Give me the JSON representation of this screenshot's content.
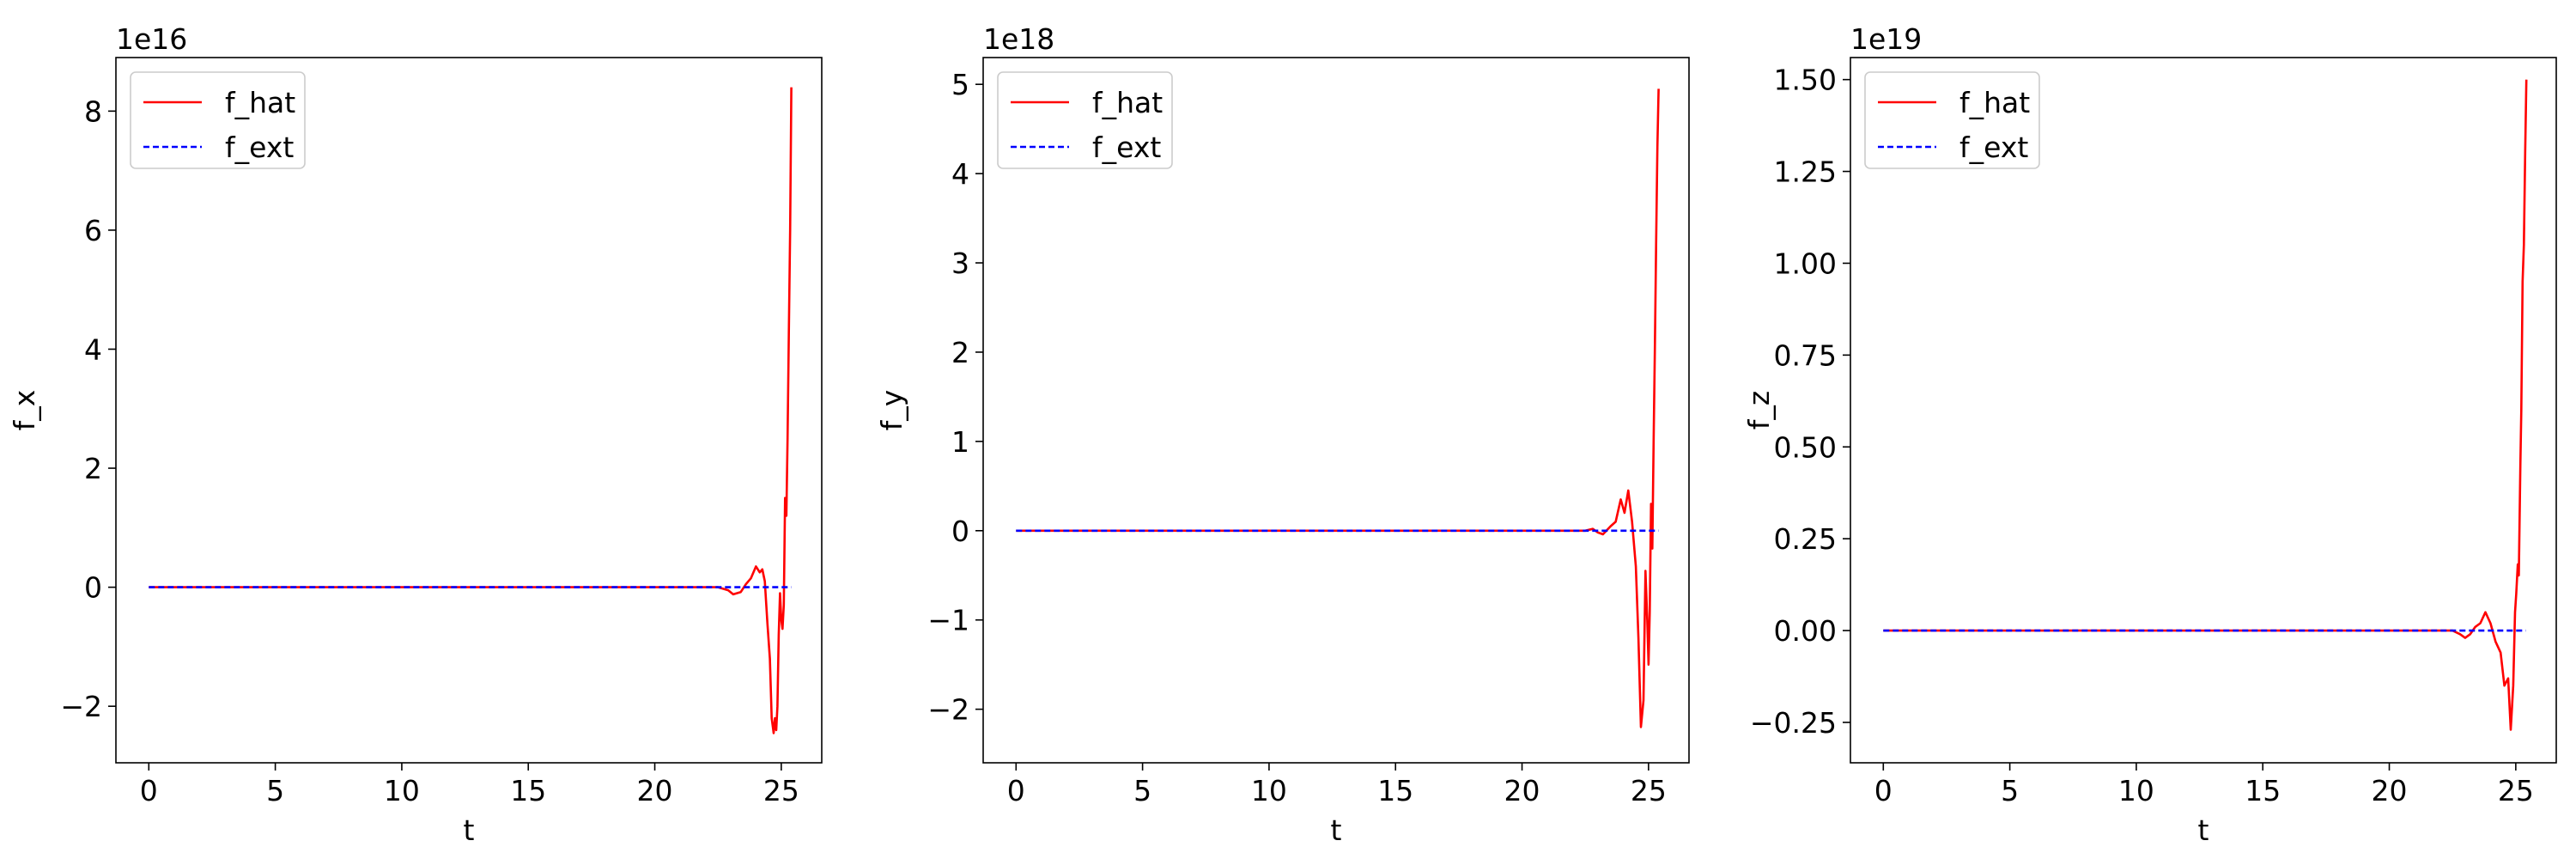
{
  "chart_data": [
    {
      "type": "line",
      "ylabel": "f_x",
      "xlabel": "t",
      "offset_text": "1e16",
      "xlim": [
        -1.3,
        26.6
      ],
      "ylim": [
        -2.95,
        8.9
      ],
      "xticks": [
        0,
        5,
        10,
        15,
        20,
        25
      ],
      "yticks": [
        -2,
        0,
        2,
        4,
        6,
        8
      ],
      "ytick_labels": [
        "−2",
        "0",
        "2",
        "4",
        "6",
        "8"
      ],
      "legend": "top-left",
      "series": [
        {
          "name": "f_hat",
          "color": "#ff0000",
          "style": "solid",
          "x": [
            0,
            5,
            10,
            15,
            20,
            22.0,
            22.5,
            22.9,
            23.1,
            23.4,
            23.6,
            23.8,
            24.0,
            24.15,
            24.25,
            24.35,
            24.45,
            24.55,
            24.62,
            24.7,
            24.75,
            24.8,
            24.85,
            24.9,
            24.95,
            25.0,
            25.05,
            25.1,
            25.15,
            25.2,
            25.25,
            25.3,
            25.35,
            25.4
          ],
          "y": [
            0,
            0,
            0,
            0,
            0,
            0.0,
            0.0,
            -0.05,
            -0.12,
            -0.08,
            0.05,
            0.15,
            0.35,
            0.25,
            0.3,
            0.1,
            -0.6,
            -1.2,
            -2.2,
            -2.45,
            -2.2,
            -2.4,
            -2.0,
            -0.8,
            -0.1,
            -0.55,
            -0.7,
            -0.3,
            1.5,
            1.2,
            2.5,
            4.3,
            6.0,
            8.4
          ]
        },
        {
          "name": "f_ext",
          "color": "#0000ff",
          "style": "dashed",
          "x": [
            0,
            25.4
          ],
          "y": [
            0,
            0
          ]
        }
      ]
    },
    {
      "type": "line",
      "ylabel": "f_y",
      "xlabel": "t",
      "offset_text": "1e18",
      "xlim": [
        -1.3,
        26.6
      ],
      "ylim": [
        -2.6,
        5.3
      ],
      "xticks": [
        0,
        5,
        10,
        15,
        20,
        25
      ],
      "yticks": [
        -2,
        -1,
        0,
        1,
        2,
        3,
        4,
        5
      ],
      "ytick_labels": [
        "−2",
        "−1",
        "0",
        "1",
        "2",
        "3",
        "4",
        "5"
      ],
      "legend": "top-left",
      "series": [
        {
          "name": "f_hat",
          "color": "#ff0000",
          "style": "solid",
          "x": [
            0,
            5,
            10,
            15,
            20,
            22.5,
            22.8,
            23.0,
            23.2,
            23.5,
            23.7,
            23.9,
            24.05,
            24.2,
            24.35,
            24.5,
            24.6,
            24.7,
            24.8,
            24.88,
            24.95,
            25.0,
            25.05,
            25.1,
            25.15,
            25.2,
            25.25,
            25.3,
            25.35,
            25.4
          ],
          "y": [
            0,
            0,
            0,
            0,
            0,
            0.0,
            0.02,
            -0.02,
            -0.04,
            0.05,
            0.1,
            0.35,
            0.2,
            0.45,
            0.1,
            -0.4,
            -1.2,
            -2.2,
            -1.9,
            -0.45,
            -1.0,
            -1.5,
            -0.9,
            0.3,
            -0.2,
            1.0,
            2.0,
            3.2,
            4.3,
            4.95
          ]
        },
        {
          "name": "f_ext",
          "color": "#0000ff",
          "style": "dashed",
          "x": [
            0,
            25.4
          ],
          "y": [
            0,
            0
          ]
        }
      ]
    },
    {
      "type": "line",
      "ylabel": "f_z",
      "xlabel": "t",
      "offset_text": "1e19",
      "xlim": [
        -1.3,
        26.6
      ],
      "ylim": [
        -0.36,
        1.56
      ],
      "xticks": [
        0,
        5,
        10,
        15,
        20,
        25
      ],
      "yticks": [
        -0.25,
        0.0,
        0.25,
        0.5,
        0.75,
        1.0,
        1.25,
        1.5
      ],
      "ytick_labels": [
        "−0.25",
        "0.00",
        "0.25",
        "0.50",
        "0.75",
        "1.00",
        "1.25",
        "1.50"
      ],
      "legend": "top-left",
      "series": [
        {
          "name": "f_hat",
          "color": "#ff0000",
          "style": "solid",
          "x": [
            0,
            5,
            10,
            15,
            20,
            22.0,
            22.5,
            22.8,
            23.0,
            23.2,
            23.4,
            23.6,
            23.8,
            24.0,
            24.2,
            24.4,
            24.55,
            24.7,
            24.8,
            24.9,
            24.97,
            25.02,
            25.08,
            25.12,
            25.18,
            25.22,
            25.27,
            25.32,
            25.37,
            25.42
          ],
          "y": [
            0,
            0,
            0,
            0,
            0,
            0.0,
            0.0,
            -0.01,
            -0.02,
            -0.01,
            0.01,
            0.02,
            0.05,
            0.02,
            -0.03,
            -0.06,
            -0.15,
            -0.13,
            -0.27,
            -0.15,
            0.05,
            0.1,
            0.18,
            0.15,
            0.45,
            0.6,
            0.95,
            1.05,
            1.3,
            1.5
          ]
        },
        {
          "name": "f_ext",
          "color": "#0000ff",
          "style": "dashed",
          "x": [
            0,
            25.4
          ],
          "y": [
            0,
            0
          ]
        }
      ]
    }
  ]
}
